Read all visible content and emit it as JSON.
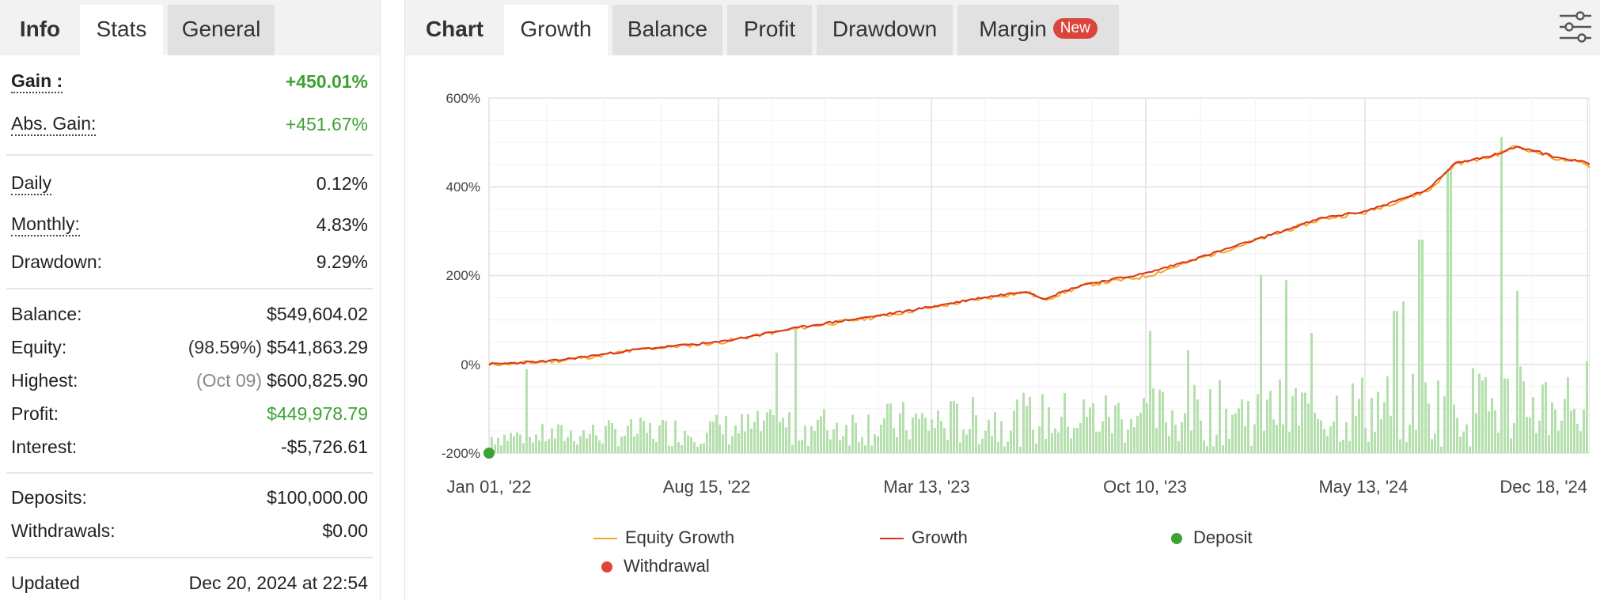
{
  "left_tabs": [
    {
      "label": "Info"
    },
    {
      "label": "Stats"
    },
    {
      "label": "General"
    }
  ],
  "stats": {
    "gain": {
      "label": "Gain :",
      "value": "+450.01%"
    },
    "abs_gain": {
      "label": "Abs. Gain:",
      "value": "+451.67%"
    },
    "daily": {
      "label": "Daily",
      "value": "0.12%"
    },
    "monthly": {
      "label": "Monthly:",
      "value": "4.83%"
    },
    "drawdown": {
      "label": "Drawdown:",
      "value": "9.29%"
    },
    "balance": {
      "label": "Balance:",
      "value": "$549,604.02"
    },
    "equity": {
      "label": "Equity:",
      "note": "(98.59%)",
      "value": "$541,863.29"
    },
    "highest": {
      "label": "Highest:",
      "note": "(Oct 09)",
      "value": "$600,825.90"
    },
    "profit": {
      "label": "Profit:",
      "value": "$449,978.79"
    },
    "interest": {
      "label": "Interest:",
      "value": "-$5,726.61"
    },
    "deposits": {
      "label": "Deposits:",
      "value": "$100,000.00"
    },
    "withdrawals": {
      "label": "Withdrawals:",
      "value": "$0.00"
    },
    "updated": {
      "label": "Updated",
      "value": "Dec 20, 2024 at 22:54"
    }
  },
  "right_tabs": [
    {
      "label": "Chart"
    },
    {
      "label": "Growth"
    },
    {
      "label": "Balance"
    },
    {
      "label": "Profit"
    },
    {
      "label": "Drawdown"
    },
    {
      "label": "Margin",
      "badge": "New"
    }
  ],
  "icons": {
    "settings": "sliders-icon"
  },
  "colors": {
    "equity_growth": "#f5a623",
    "growth": "#d9331e",
    "deposit": "#3da234",
    "withdrawal": "#e0453a",
    "bars": "#b5e0ae",
    "positive": "#3da234"
  },
  "chart_data": {
    "type": "line",
    "title": "",
    "xlabel": "",
    "ylabel": "",
    "ylim": [
      -200,
      600
    ],
    "yticks": [
      "600%",
      "400%",
      "200%",
      "0%",
      "-200%"
    ],
    "ytick_values": [
      600,
      400,
      200,
      0,
      -200
    ],
    "x_range": [
      "2022-01-01",
      "2024-12-20"
    ],
    "xticks": [
      "Jan 01, '22",
      "Aug 15, '22",
      "Mar 13, '23",
      "Oct 10, '23",
      "May 13, '24",
      "Dec 18, '24"
    ],
    "xtick_dates": [
      "2022-01-01",
      "2022-08-15",
      "2023-03-13",
      "2023-10-10",
      "2024-05-13",
      "2024-12-18"
    ],
    "series": [
      {
        "name": "Growth",
        "dates": [
          "2022-01-01",
          "2022-03-01",
          "2022-04-15",
          "2022-06-01",
          "2022-08-15",
          "2022-10-01",
          "2022-11-20",
          "2023-01-15",
          "2023-03-13",
          "2023-05-01",
          "2023-06-15",
          "2023-07-01",
          "2023-08-10",
          "2023-10-10",
          "2023-12-01",
          "2024-02-01",
          "2024-04-01",
          "2024-05-13",
          "2024-06-15",
          "2024-07-15",
          "2024-08-10",
          "2024-09-15",
          "2024-10-09",
          "2024-11-01",
          "2024-11-20",
          "2024-12-18",
          "2024-12-20"
        ],
        "values": [
          0,
          7,
          20,
          35,
          50,
          70,
          90,
          108,
          130,
          150,
          165,
          148,
          180,
          205,
          240,
          285,
          330,
          345,
          370,
          395,
          455,
          470,
          490,
          478,
          465,
          455,
          450
        ]
      },
      {
        "name": "Equity Growth",
        "dates": [
          "2022-01-01",
          "2022-03-01",
          "2022-04-15",
          "2022-06-01",
          "2022-08-15",
          "2022-10-01",
          "2022-11-20",
          "2023-01-15",
          "2023-03-13",
          "2023-05-01",
          "2023-06-15",
          "2023-07-01",
          "2023-08-10",
          "2023-10-10",
          "2023-12-01",
          "2024-02-01",
          "2024-04-01",
          "2024-05-13",
          "2024-06-15",
          "2024-07-15",
          "2024-08-10",
          "2024-09-15",
          "2024-10-09",
          "2024-11-01",
          "2024-11-20",
          "2024-12-18",
          "2024-12-20"
        ],
        "values": [
          0,
          6,
          18,
          34,
          49,
          69,
          88,
          106,
          128,
          148,
          163,
          145,
          178,
          198,
          238,
          283,
          328,
          342,
          368,
          392,
          452,
          468,
          492,
          476,
          462,
          452,
          442
        ]
      },
      {
        "name": "Deposit",
        "dates": [
          "2022-01-01"
        ],
        "values": [
          -200
        ]
      }
    ],
    "legend": [
      "Equity Growth",
      "Growth",
      "Deposit",
      "Withdrawal"
    ],
    "legend_position": "bottom",
    "grid": true
  }
}
